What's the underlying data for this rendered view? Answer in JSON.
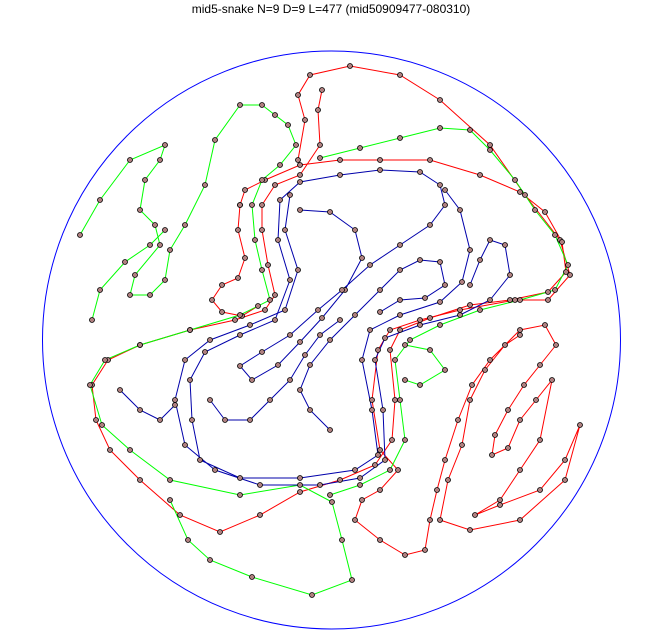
{
  "title": "mid5-snake N=9 D=9 L=477 (mid50909477-080310)",
  "colors": {
    "boundary": "#0000ff",
    "red_path": "#ff0000",
    "green_path": "#00ff00",
    "blue_path": "#0000aa",
    "node_fill": "#b08080"
  }
}
